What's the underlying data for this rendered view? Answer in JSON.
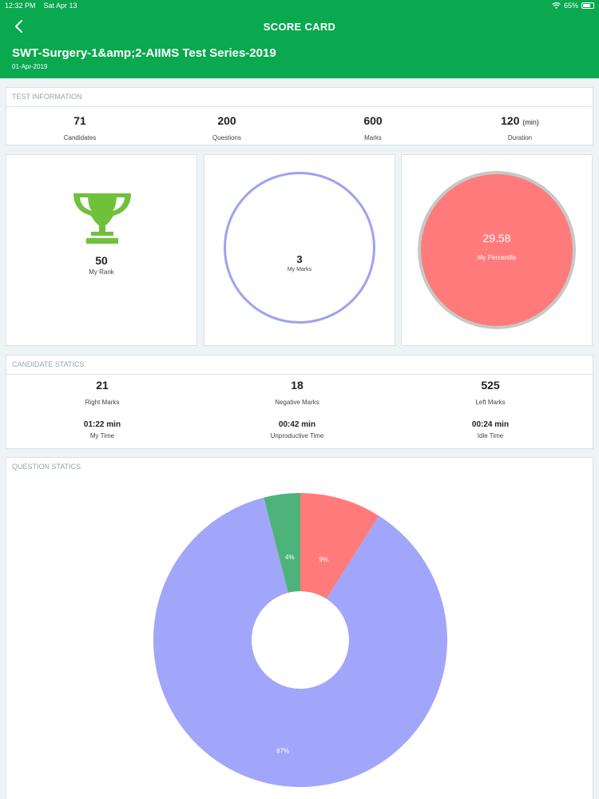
{
  "status_bar": {
    "time": "12:32 PM",
    "date": "Sat Apr 13",
    "battery": "65%"
  },
  "nav": {
    "title": "SCORE CARD"
  },
  "header": {
    "test_name": "SWT-Surgery-1&amp;2-AIIMS Test Series-2019",
    "date": "01-Apr-2019"
  },
  "test_information": {
    "title": "TEST INFORMATION",
    "items": [
      {
        "value": "71",
        "label": "Candidates"
      },
      {
        "value": "200",
        "label": "Questions"
      },
      {
        "value": "600",
        "label": "Marks"
      },
      {
        "value": "120",
        "unit": "(min)",
        "label": "Duration"
      }
    ]
  },
  "rank": {
    "value": "50",
    "label": "My Rank"
  },
  "marks": {
    "value": "3",
    "label": "My Marks"
  },
  "percentile": {
    "value": "29.58",
    "label": "My Percentile"
  },
  "candidate_statics": {
    "title": "CANDIDATE STATICS",
    "marks": [
      {
        "value": "21",
        "label": "Right Marks"
      },
      {
        "value": "18",
        "label": "Negative Marks"
      },
      {
        "value": "525",
        "label": "Left Marks"
      }
    ],
    "times": [
      {
        "value": "01:22 min",
        "label": "My Time"
      },
      {
        "value": "00:42 min",
        "label": "Unproductive Time"
      },
      {
        "value": "00:24 min",
        "label": "Idle Time"
      }
    ]
  },
  "question_statics": {
    "title": "QUESTION STATICS"
  },
  "colors": {
    "green": "#0aa84f",
    "red": "#ff7b7b",
    "blue": "#a1a6fb",
    "pie_green": "#4eb37a"
  },
  "chart_data": {
    "type": "pie",
    "donut": true,
    "slices": [
      {
        "label": "9%",
        "value": 9,
        "color": "#ff7b7b"
      },
      {
        "label": "87%",
        "value": 87,
        "color": "#a1a6fb"
      },
      {
        "label": "4%",
        "value": 4,
        "color": "#4eb37a"
      }
    ]
  }
}
